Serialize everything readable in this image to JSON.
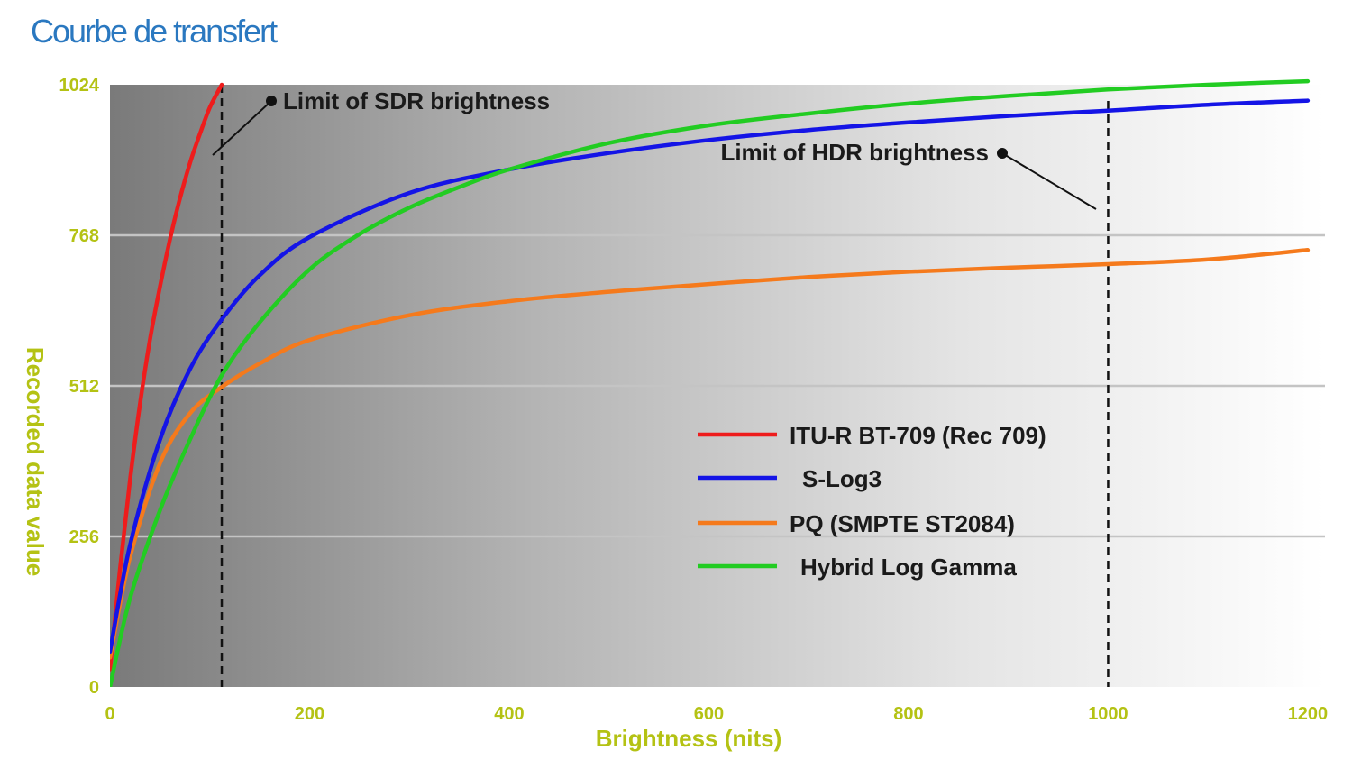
{
  "page": {
    "title": "Courbe de transfert"
  },
  "colors": {
    "title": "#2a78c0",
    "axis_text": "#b4c214",
    "gridline": "#c4c4c4",
    "background_dark": "#7a7a7a",
    "background_light": "#ffffff"
  },
  "chart_data": {
    "type": "line",
    "title": "",
    "xlabel": "Brightness (nits)",
    "ylabel": "Recorded data value",
    "xlim": [
      0,
      1210
    ],
    "ylim": [
      0,
      1024
    ],
    "xticks": [
      0,
      200,
      400,
      600,
      800,
      1000,
      1200
    ],
    "yticks": [
      0,
      256,
      512,
      768,
      1024
    ],
    "grid": "horizontal",
    "legend_position": "center-right",
    "series": [
      {
        "name": "ITU-R BT-709 (Rec 709)",
        "color": "#ee1c1c",
        "x": [
          0,
          10,
          20,
          30,
          40,
          50,
          60,
          70,
          80,
          90,
          100,
          112
        ],
        "y": [
          30,
          200,
          350,
          480,
          590,
          680,
          760,
          830,
          890,
          940,
          985,
          1024
        ]
      },
      {
        "name": "S-Log3",
        "color": "#1414e6",
        "x": [
          0,
          20,
          50,
          80,
          112,
          150,
          200,
          300,
          400,
          500,
          600,
          700,
          800,
          900,
          1000,
          1100,
          1200
        ],
        "y": [
          60,
          240,
          420,
          540,
          625,
          700,
          765,
          840,
          880,
          908,
          930,
          947,
          960,
          971,
          980,
          990,
          997
        ]
      },
      {
        "name": "PQ (SMPTE ST2084)",
        "color": "#f57a1c",
        "x": [
          0,
          20,
          50,
          80,
          112,
          150,
          200,
          300,
          400,
          500,
          600,
          700,
          800,
          900,
          1000,
          1100,
          1200
        ],
        "y": [
          50,
          220,
          380,
          465,
          510,
          550,
          590,
          632,
          656,
          672,
          685,
          697,
          706,
          713,
          719,
          727,
          743
        ]
      },
      {
        "name": "Hybrid Log Gamma",
        "color": "#22cc22",
        "x": [
          0,
          20,
          50,
          80,
          112,
          150,
          200,
          250,
          300,
          350,
          400,
          500,
          600,
          700,
          800,
          900,
          1000,
          1100,
          1200
        ],
        "y": [
          0,
          150,
          300,
          420,
          530,
          620,
          710,
          770,
          815,
          850,
          880,
          925,
          955,
          975,
          992,
          1005,
          1016,
          1024,
          1030
        ]
      }
    ],
    "reference_lines": [
      {
        "x": 112,
        "label": "Limit of SDR brightness"
      },
      {
        "x": 1000,
        "label": "Limit of HDR brightness"
      }
    ]
  }
}
